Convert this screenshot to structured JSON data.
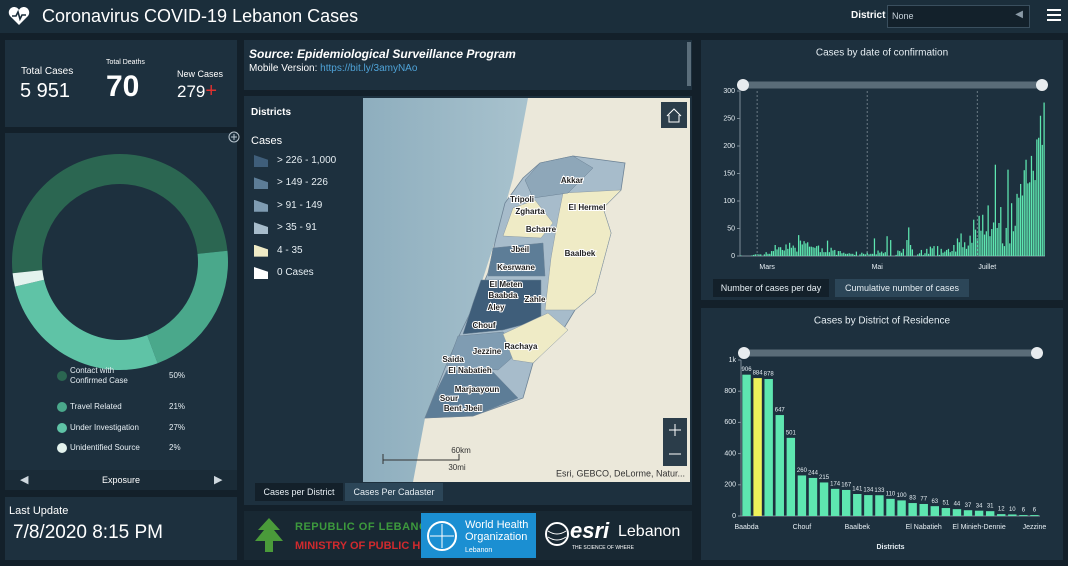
{
  "header": {
    "title": "Coronavirus COVID-19 Lebanon Cases",
    "district_label": "District",
    "district_value": "None"
  },
  "stats": {
    "total_cases_label": "Total Cases",
    "total_cases": "5 951",
    "total_deaths_label": "Total Deaths",
    "total_deaths": "70",
    "new_cases_label": "New Cases",
    "new_cases": "279",
    "new_cases_sign": "+"
  },
  "exposure": {
    "type": "pie",
    "title": "Exposure",
    "categories": [
      "Contact with Confirmed Case",
      "Travel Related",
      "Under Investigation",
      "Unidentified Source"
    ],
    "values": [
      50,
      21,
      27,
      2
    ],
    "value_labels": [
      "50%",
      "21%",
      "27%",
      "2%"
    ],
    "colors": [
      "#2b6651",
      "#4aa88b",
      "#5fc3a6",
      "#e4f3ee"
    ]
  },
  "last_update": {
    "label": "Last Update",
    "value": "7/8/2020 8:15 PM"
  },
  "source": {
    "title": "Source: Epidemiological Surveillance Program",
    "mobile_label": "Mobile Version:",
    "mobile_link": "https://bit.ly/3amyNAo"
  },
  "map": {
    "legend_title": "Districts",
    "legend_subtitle": "Cases",
    "classes": [
      {
        "label": "> 226 - 1,000",
        "color": "#3f5e7a"
      },
      {
        "label": "> 149 - 226",
        "color": "#5d7d97"
      },
      {
        "label": "> 91 - 149",
        "color": "#7f9cb2"
      },
      {
        "label": "> 35 - 91",
        "color": "#a7bccb"
      },
      {
        "label": "4 - 35",
        "color": "#efebc6"
      },
      {
        "label": "0 Cases",
        "color": "#ffffff"
      }
    ],
    "district_labels": [
      "Akkar",
      "Tripoli",
      "Zgharta",
      "El Hermel",
      "Bcharre",
      "Jbeil",
      "Baalbek",
      "Kesrwane",
      "El Meten",
      "Baabda",
      "Zahle",
      "Aley",
      "Chouf",
      "Rachaya",
      "Jezzine",
      "Saida",
      "El Nabatieh",
      "Marjaayoun",
      "Sour",
      "Bent Jbeil"
    ],
    "scale_km": "60km",
    "scale_mi": "30mi",
    "attribution": "Esri, GEBCO, DeLorme, Natur...",
    "tabs": [
      "Cases per District",
      "Cases Per Cadaster"
    ]
  },
  "logos": {
    "moph_line1": "REPUBLIC OF LEBANON",
    "moph_line2": "MINISTRY OF PUBLIC HEALTH",
    "who_name": "World Health Organization",
    "who_country": "Lebanon",
    "esri_name": "esri",
    "esri_country": "Lebanon",
    "esri_tagline": "THE SCIENCE OF WHERE"
  },
  "cases_by_date": {
    "type": "bar",
    "title": "Cases by  date of confirmation",
    "color": "#5ee6b0",
    "categories": [
      null,
      null,
      null,
      null,
      null,
      null,
      null,
      null,
      null,
      "Mars",
      null,
      null,
      null,
      null,
      null,
      null,
      null,
      null,
      null,
      null,
      null,
      null,
      null,
      null,
      null,
      null,
      null,
      null,
      null,
      null,
      null,
      null,
      null,
      null,
      null,
      null,
      null,
      null,
      null,
      null,
      null,
      null,
      null,
      null,
      null,
      null,
      null,
      null,
      null,
      null,
      null,
      null,
      null,
      null,
      null,
      null,
      null,
      null,
      null,
      null,
      null,
      null,
      null,
      null,
      null,
      null,
      null,
      null,
      null,
      null,
      "Mai",
      null,
      null,
      null,
      null,
      null,
      null,
      null,
      null,
      null,
      null,
      null,
      null,
      null,
      null,
      null,
      null,
      null,
      null,
      null,
      null,
      null,
      null,
      null,
      null,
      null,
      null,
      null,
      null,
      null,
      null,
      null,
      null,
      null,
      null,
      null,
      null,
      null,
      null,
      null,
      null,
      null,
      null,
      null,
      null,
      null,
      null,
      null,
      null,
      null,
      null,
      null,
      null,
      null,
      null,
      null,
      null,
      null,
      null,
      null,
      null,
      "Juillet",
      null,
      null,
      null,
      null,
      null,
      null,
      null,
      null,
      null,
      null,
      null,
      null,
      null,
      null,
      null,
      null,
      null,
      null,
      null,
      null,
      null,
      null,
      null,
      null,
      null,
      null,
      null,
      null,
      null,
      null,
      null,
      null,
      null,
      null,
      null,
      null,
      null
    ],
    "values": [
      1,
      0,
      0,
      0,
      0,
      0,
      1,
      2,
      3,
      3,
      3,
      3,
      0,
      3,
      7,
      4,
      4,
      9,
      9,
      20,
      12,
      16,
      16,
      11,
      10,
      21,
      13,
      24,
      15,
      19,
      15,
      8,
      38,
      28,
      21,
      27,
      23,
      25,
      17,
      17,
      16,
      15,
      18,
      19,
      7,
      14,
      7,
      7,
      28,
      7,
      15,
      10,
      11,
      2,
      9,
      9,
      5,
      6,
      4,
      4,
      5,
      4,
      4,
      2,
      8,
      0,
      3,
      6,
      4,
      3,
      8,
      3,
      4,
      4,
      32,
      3,
      10,
      6,
      8,
      5,
      7,
      36,
      0,
      29,
      0,
      0,
      2,
      10,
      9,
      6,
      13,
      0,
      29,
      52,
      20,
      12,
      0,
      0,
      3,
      5,
      11,
      2,
      5,
      13,
      4,
      17,
      14,
      18,
      0,
      18,
      2,
      13,
      6,
      8,
      11,
      13,
      7,
      9,
      20,
      8,
      32,
      25,
      41,
      16,
      25,
      13,
      19,
      37,
      24,
      66,
      48,
      32,
      73,
      46,
      75,
      39,
      45,
      92,
      36,
      49,
      61,
      166,
      51,
      60,
      89,
      23,
      18,
      51,
      157,
      23,
      96,
      45,
      55,
      113,
      106,
      131,
      110,
      156,
      175,
      132,
      134,
      182,
      155,
      138,
      212,
      215,
      255,
      202,
      279
    ],
    "ylim": [
      0,
      300
    ],
    "yticks": [
      0,
      50,
      100,
      150,
      200,
      250,
      300
    ],
    "x_grid": true,
    "buttons": [
      "Number of cases per day",
      "Cumulative number of cases"
    ]
  },
  "cases_by_district": {
    "type": "bar",
    "title": "Cases by District of Residence",
    "xlabel": "Districts",
    "categories": [
      "Baabda",
      null,
      null,
      null,
      null,
      "Chouf",
      null,
      null,
      null,
      null,
      "Baalbek",
      null,
      null,
      null,
      null,
      null,
      "El Nabatieh",
      null,
      null,
      null,
      null,
      "El Minieh-Dennie",
      null,
      null,
      null,
      null,
      "Jezzine"
    ],
    "values": [
      906,
      884,
      878,
      647,
      501,
      260,
      244,
      215,
      174,
      167,
      141,
      134,
      133,
      110,
      100,
      83,
      77,
      63,
      51,
      44,
      37,
      34,
      31,
      12,
      10,
      6,
      6
    ],
    "colors": [
      "#5ee6b0",
      "#eef25a",
      "#5ee6b0",
      "#5ee6b0",
      "#5ee6b0",
      "#5ee6b0",
      "#5ee6b0",
      "#5ee6b0",
      "#5ee6b0",
      "#5ee6b0",
      "#5ee6b0",
      "#5ee6b0",
      "#5ee6b0",
      "#5ee6b0",
      "#5ee6b0",
      "#5ee6b0",
      "#5ee6b0",
      "#5ee6b0",
      "#5ee6b0",
      "#5ee6b0",
      "#5ee6b0",
      "#5ee6b0",
      "#5ee6b0",
      "#5ee6b0",
      "#5ee6b0",
      "#5ee6b0",
      "#5ee6b0"
    ],
    "ylim": [
      0,
      1000
    ],
    "yticks": [
      0,
      200,
      400,
      600,
      800,
      {
        "value": 1000,
        "label": "1k"
      }
    ]
  }
}
